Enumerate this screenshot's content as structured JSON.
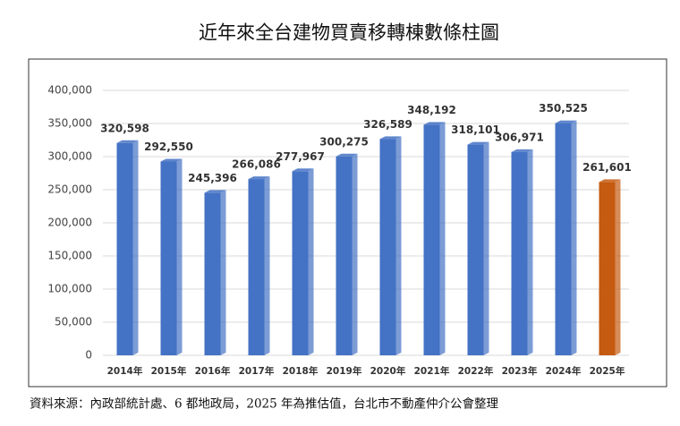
{
  "chart_data": {
    "type": "bar",
    "title": "近年來全台建物買賣移轉棟數條柱圖",
    "categories": [
      "2014年",
      "2015年",
      "2016年",
      "2017年",
      "2018年",
      "2019年",
      "2020年",
      "2021年",
      "2022年",
      "2023年",
      "2024年",
      "2025年"
    ],
    "values": [
      320598,
      292550,
      245396,
      266086,
      277967,
      300275,
      326589,
      348192,
      318101,
      306971,
      350525,
      261601
    ],
    "value_labels": [
      "320,598",
      "292,550",
      "245,396",
      "266,086",
      "277,967",
      "300,275",
      "326,589",
      "348,192",
      "318,101",
      "306,971",
      "350,525",
      "261,601"
    ],
    "colors": [
      "#4472c4",
      "#4472c4",
      "#4472c4",
      "#4472c4",
      "#4472c4",
      "#4472c4",
      "#4472c4",
      "#4472c4",
      "#4472c4",
      "#4472c4",
      "#4472c4",
      "#c55a11"
    ],
    "ylim": [
      0,
      400000
    ],
    "yticks": [
      0,
      {
        "value": 50000,
        "label": "50,000"
      },
      {
        "value": 100000,
        "label": "100,000"
      },
      {
        "value": 150000,
        "label": "150,000"
      },
      {
        "value": 200000,
        "label": "200,000"
      },
      {
        "value": 250000,
        "label": "250,000"
      },
      {
        "value": 300000,
        "label": "300,000"
      },
      {
        "value": 350000,
        "label": "350,000"
      },
      {
        "value": 400000,
        "label": "400,000"
      }
    ],
    "grid": true,
    "source": "資料來源：內政部統計處、6 都地政局，2025 年為推估值，台北市不動產仲介公會整理"
  }
}
